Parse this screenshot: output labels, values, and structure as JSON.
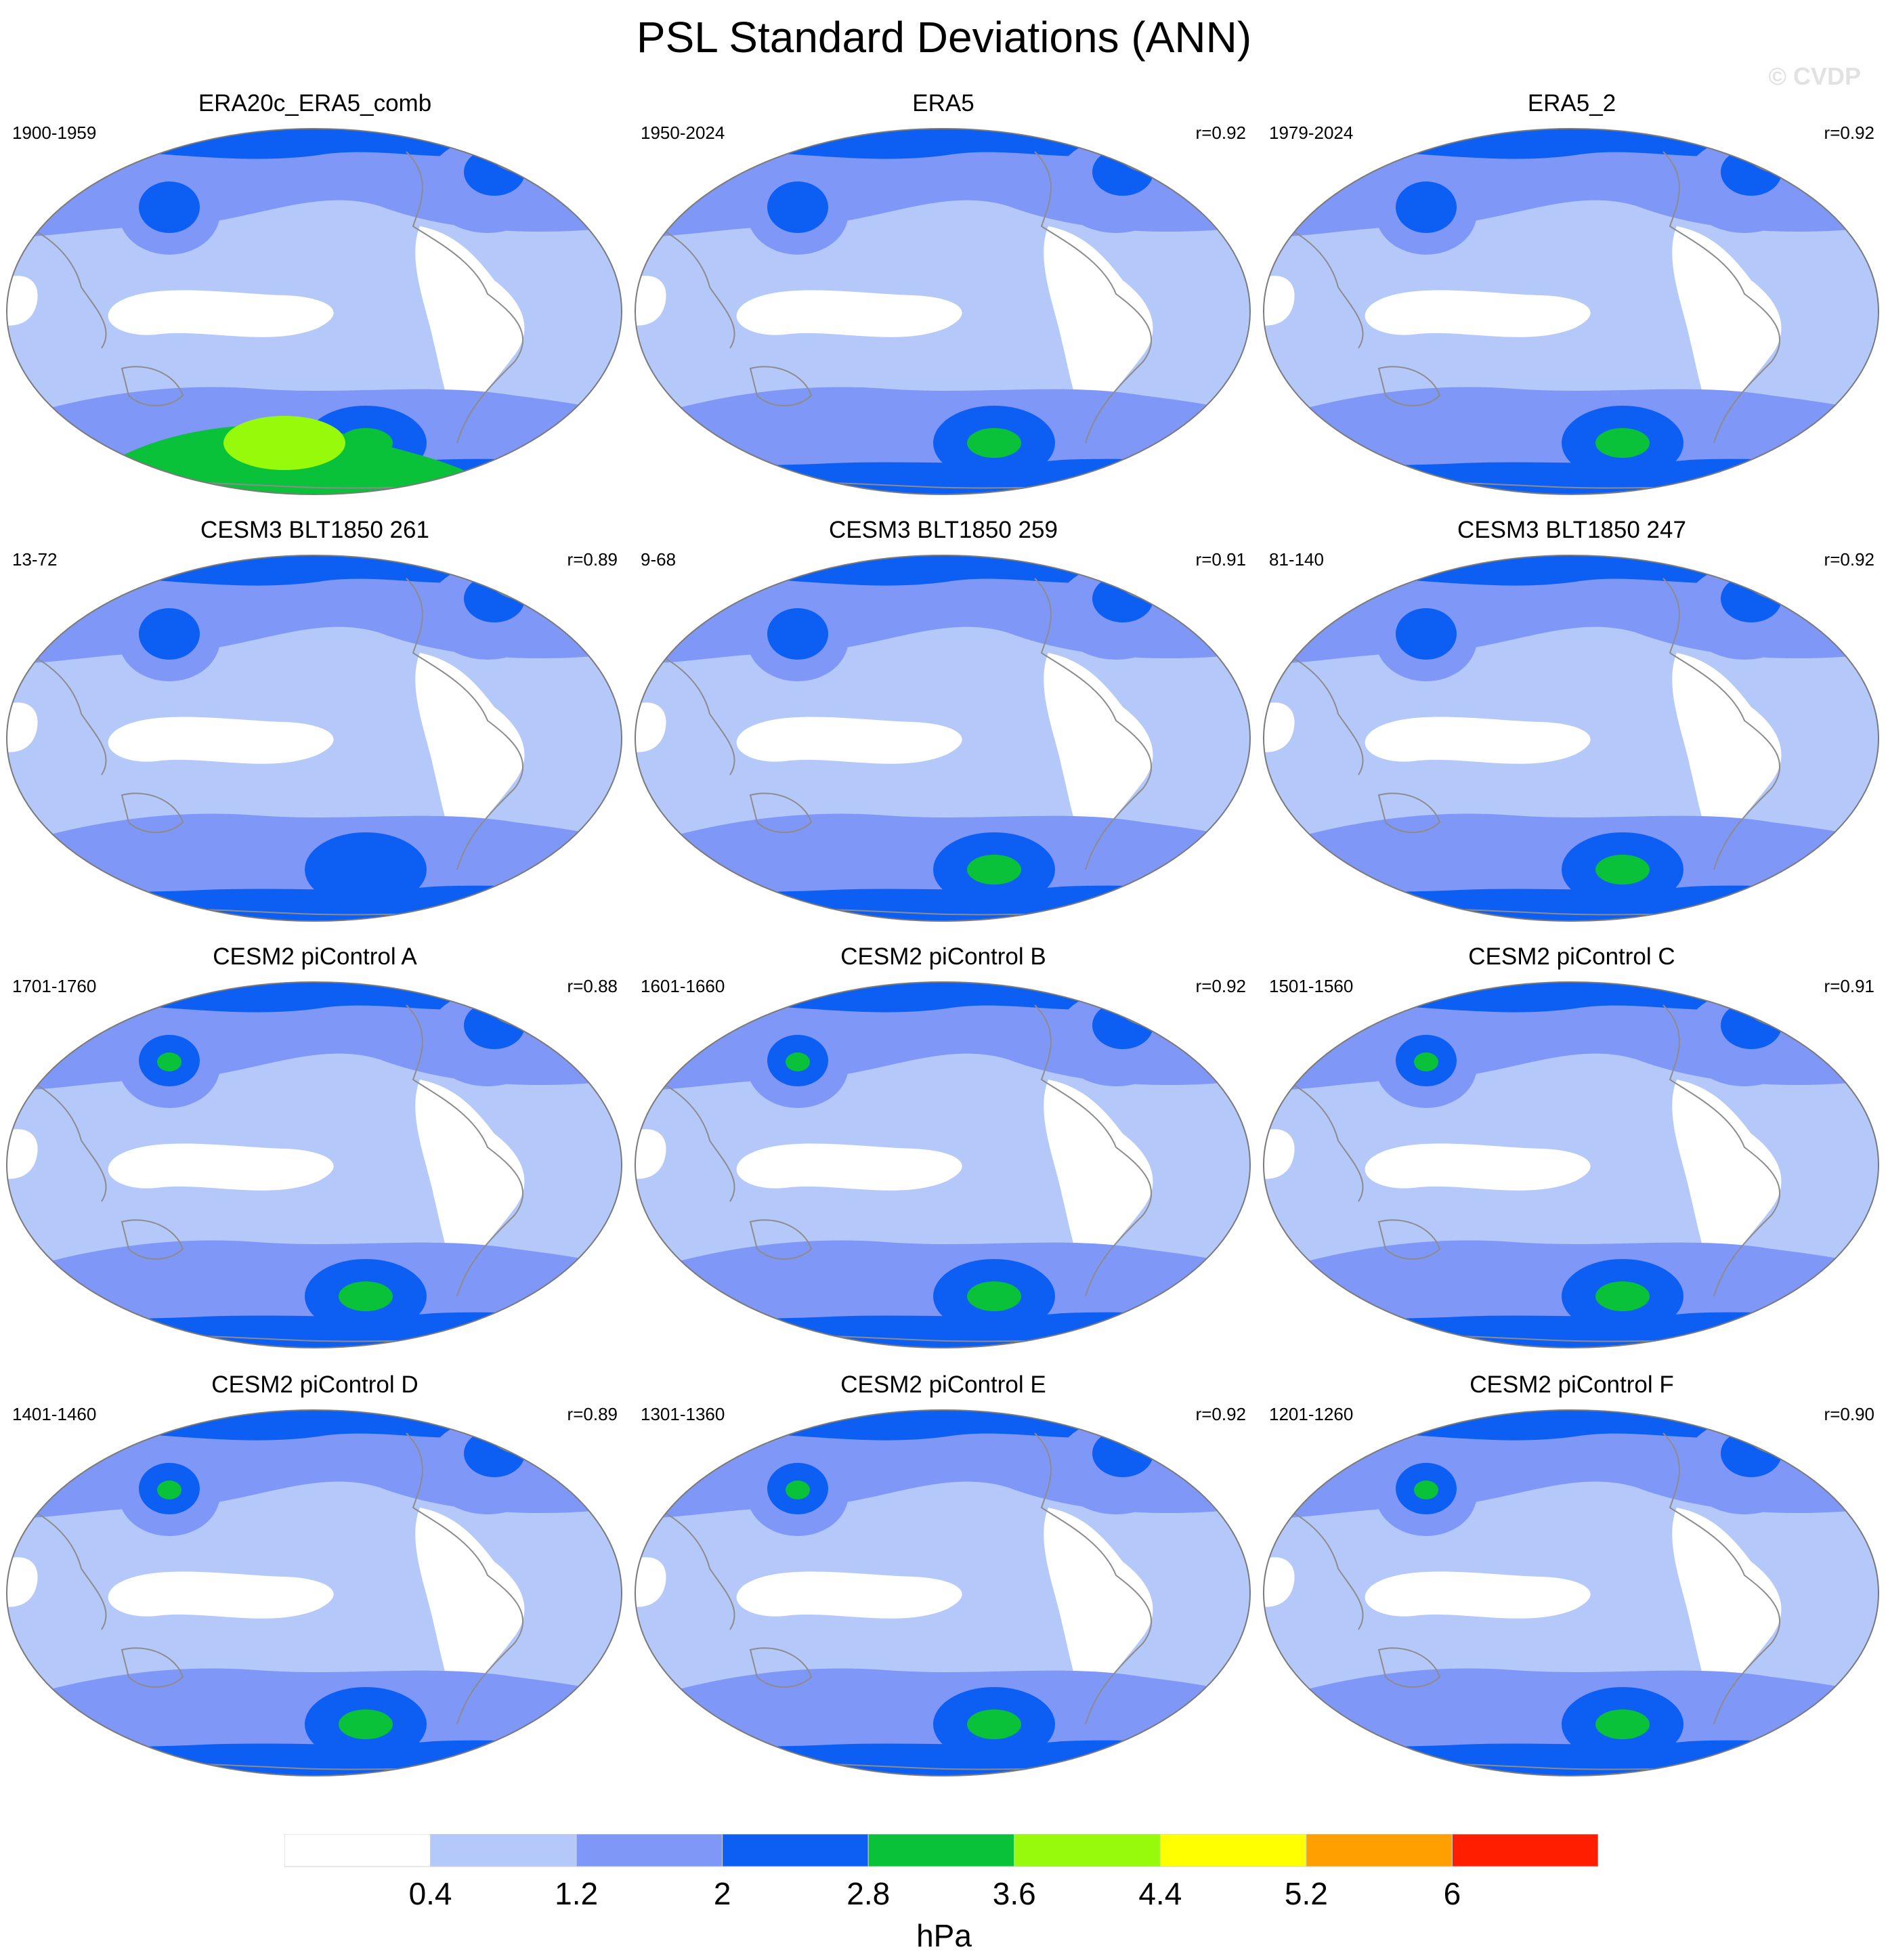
{
  "title": "PSL Standard Deviations (ANN)",
  "watermark": "© CVDP",
  "variable": "PSL",
  "season": "ANN",
  "panels": [
    {
      "title": "ERA20c_ERA5_comb",
      "years": "1900-1959",
      "r": "",
      "peak": 4
    },
    {
      "title": "ERA5",
      "years": "1950-2024",
      "r": "r=0.92",
      "peak": 3
    },
    {
      "title": "ERA5_2",
      "years": "1979-2024",
      "r": "r=0.92",
      "peak": 3
    },
    {
      "title": "CESM3 BLT1850 261",
      "years": "13-72",
      "r": "r=0.89",
      "peak": 2
    },
    {
      "title": "CESM3 BLT1850 259",
      "years": "9-68",
      "r": "r=0.91",
      "peak": 3
    },
    {
      "title": "CESM3 BLT1850 247",
      "years": "81-140",
      "r": "r=0.92",
      "peak": 3
    },
    {
      "title": "CESM2 piControl A",
      "years": "1701-1760",
      "r": "r=0.88",
      "peak": 3
    },
    {
      "title": "CESM2 piControl B",
      "years": "1601-1660",
      "r": "r=0.92",
      "peak": 3
    },
    {
      "title": "CESM2 piControl C",
      "years": "1501-1560",
      "r": "r=0.91",
      "peak": 3
    },
    {
      "title": "CESM2 piControl D",
      "years": "1401-1460",
      "r": "r=0.89",
      "peak": 3
    },
    {
      "title": "CESM2 piControl E",
      "years": "1301-1360",
      "r": "r=0.92",
      "peak": 3
    },
    {
      "title": "CESM2 piControl F",
      "years": "1201-1260",
      "r": "r=0.90",
      "peak": 3
    }
  ],
  "colorbar": {
    "unit": "hPa",
    "labels": [
      "0.4",
      "1.2",
      "2",
      "2.8",
      "3.6",
      "4.4",
      "5.2",
      "6"
    ],
    "colors": [
      "#ffffff",
      "#b4c8fa",
      "#7f97f7",
      "#0c5ff2",
      "#0ac13a",
      "#96fa0a",
      "#ffff00",
      "#ffa000",
      "#ff1e00"
    ]
  },
  "coastline_color": "#8c8c8c"
}
